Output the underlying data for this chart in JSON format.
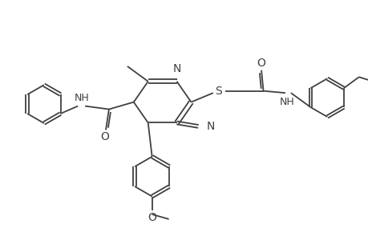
{
  "bg_color": "#ffffff",
  "line_color": "#404040",
  "line_width": 1.3,
  "font_size": 9,
  "figsize": [
    4.6,
    3.0
  ],
  "dpi": 100,
  "xlim": [
    0,
    9.2
  ],
  "ylim": [
    0,
    6.0
  ]
}
